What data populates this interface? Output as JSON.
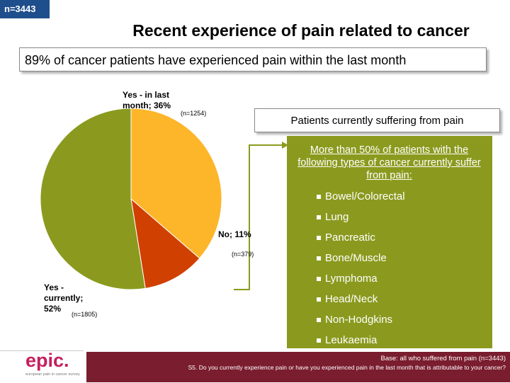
{
  "badge": "n=3443",
  "title": "Recent experience of pain related to cancer",
  "subtitle": "89% of cancer patients have experienced pain within the last month",
  "chart_data": {
    "type": "pie",
    "slices": [
      {
        "label": "Yes - in last month; 36%",
        "value": 36,
        "n": "(n=1254)",
        "color": "#fdb52a"
      },
      {
        "label": "No; 11%",
        "value": 11,
        "n": "(n=379)",
        "color": "#d04000"
      },
      {
        "label": "Yes - currently; 52%",
        "value": 52,
        "n": "(n=1805)",
        "color": "#8b9a1e"
      }
    ]
  },
  "panel": {
    "header": "Patients currently suffering from pain",
    "lead": "More than 50% of patients with the following types of cancer currently suffer from pain:",
    "types": [
      "Bowel/Colorectal",
      "Lung",
      "Pancreatic",
      "Bone/Muscle",
      "Lymphoma",
      "Head/Neck",
      "Non-Hodgkins",
      "Leukaemia"
    ]
  },
  "footer": {
    "logo": "epic.",
    "logo_tagline": "european pain in cancer survey",
    "base": "Base: all who suffered from pain (n=3443)",
    "question": "S5. Do you currently experience pain or have you experienced pain in the last month that is attributable to your cancer?"
  }
}
